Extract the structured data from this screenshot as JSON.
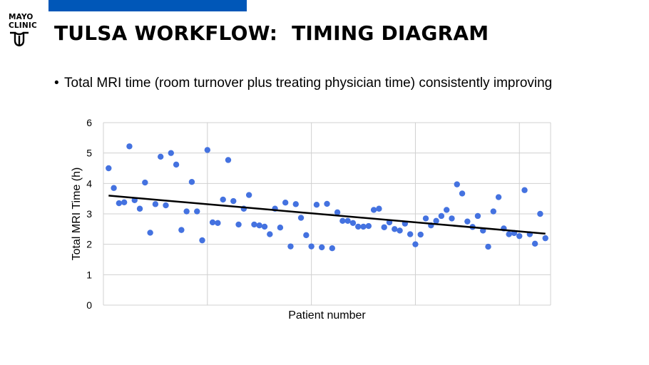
{
  "logo": {
    "line1": "MAYO",
    "line2": "CLINIC",
    "shield_color": "#000000"
  },
  "slide": {
    "title": "TULSA WORKFLOW:  TIMING DIAGRAM",
    "bullet": "Total MRI time (room turnover plus treating physician time) consistently improving",
    "accent_color": "#0057b8"
  },
  "chart_data": {
    "type": "scatter",
    "xlabel": "Patient number",
    "ylabel": "Total MRI Time (h)",
    "ylim": [
      0,
      6
    ],
    "yticks": [
      "0",
      "1",
      "2",
      "3",
      "4",
      "5",
      "6"
    ],
    "xlim": [
      0,
      86
    ],
    "grid": true,
    "point_color": "#4472e0",
    "trendline": {
      "type": "linear",
      "color": "#000000",
      "start": [
        1,
        3.6
      ],
      "end": [
        85,
        2.35
      ]
    },
    "series": [
      {
        "x": [
          1,
          2,
          3,
          4,
          5,
          6,
          7,
          8,
          9,
          10,
          11,
          12,
          13,
          14,
          15,
          16,
          17,
          18,
          19,
          20,
          21,
          22,
          23,
          24,
          25,
          26,
          27,
          28,
          29,
          30,
          31,
          32,
          33,
          34,
          35,
          36,
          37,
          38,
          39,
          40,
          41,
          42,
          43,
          44,
          45,
          46,
          47,
          48,
          49,
          50,
          51,
          52,
          53,
          54,
          55,
          56,
          57,
          58,
          59,
          60,
          61,
          62,
          63,
          64,
          65,
          66,
          67,
          68,
          69,
          70,
          71,
          72,
          73,
          74,
          75,
          76,
          77,
          78,
          79,
          80,
          81,
          82,
          83,
          84,
          85
        ],
        "y": [
          4.5,
          3.85,
          3.35,
          3.38,
          5.22,
          3.45,
          3.17,
          4.03,
          2.38,
          3.32,
          4.88,
          3.28,
          5.0,
          4.62,
          2.47,
          3.08,
          4.05,
          3.08,
          2.13,
          5.1,
          2.72,
          2.7,
          3.47,
          4.77,
          3.42,
          2.65,
          3.17,
          3.62,
          2.65,
          2.62,
          2.58,
          2.33,
          3.17,
          2.55,
          3.37,
          1.93,
          3.32,
          2.87,
          2.3,
          1.93,
          3.3,
          1.9,
          3.33,
          1.87,
          3.05,
          2.77,
          2.77,
          2.7,
          2.58,
          2.58,
          2.6,
          3.13,
          3.17,
          2.56,
          2.72,
          2.5,
          2.45,
          2.68,
          2.33,
          2.0,
          2.32,
          2.85,
          2.62,
          2.77,
          2.93,
          3.13,
          2.85,
          3.97,
          3.67,
          2.75,
          2.57,
          2.93,
          2.45,
          1.92,
          3.08,
          3.55,
          2.52,
          2.33,
          2.37,
          2.27,
          3.78,
          2.33,
          2.02,
          3.0,
          2.2
        ]
      }
    ]
  }
}
